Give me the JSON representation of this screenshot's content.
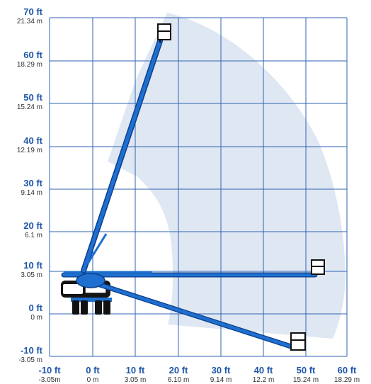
{
  "colors": {
    "grid": "#2f63b3",
    "label_ft": "#1f56aa",
    "label_m": "#333333",
    "envelope": "#dfe7f3",
    "boom": "#1e6fd0",
    "boom_dark": "#0d3f8a",
    "chassis": "#111111"
  },
  "y_axis": [
    {
      "ft": "70 ft",
      "m": "21.34 m"
    },
    {
      "ft": "60 ft",
      "m": "18.29 m"
    },
    {
      "ft": "50 ft",
      "m": "15.24 m"
    },
    {
      "ft": "40 ft",
      "m": "12.19 m"
    },
    {
      "ft": "30 ft",
      "m": "9.14 m"
    },
    {
      "ft": "20 ft",
      "m": "6.1 m"
    },
    {
      "ft": "10 ft",
      "m": "3.05 m"
    },
    {
      "ft": "0 ft",
      "m": "0 m"
    },
    {
      "ft": "-10 ft",
      "m": "-3.05 m"
    }
  ],
  "x_axis": [
    {
      "ft": "-10 ft",
      "m": "-3.05m"
    },
    {
      "ft": "0 ft",
      "m": "0 m"
    },
    {
      "ft": "10 ft",
      "m": "3.05 m"
    },
    {
      "ft": "20 ft",
      "m": "6.10 m"
    },
    {
      "ft": "30 ft",
      "m": "9.14 m"
    },
    {
      "ft": "40 ft",
      "m": "12.2 m"
    },
    {
      "ft": "50 ft",
      "m": "15.24 m"
    },
    {
      "ft": "60 ft",
      "m": "18.29 m"
    }
  ]
}
